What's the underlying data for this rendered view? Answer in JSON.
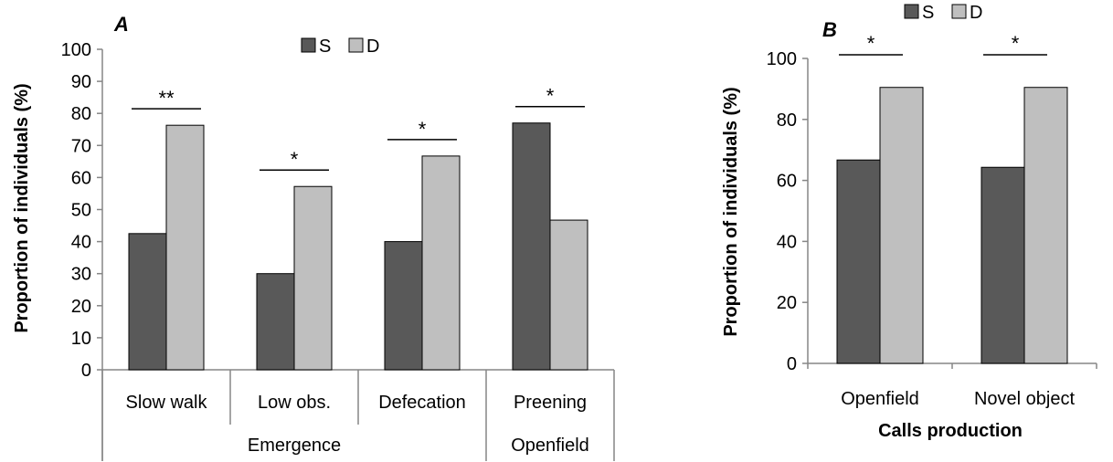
{
  "chart_data": [
    {
      "type": "bar",
      "panel_label": "A",
      "ylabel": "Proportion of individuals (%)",
      "ylim": [
        0,
        100
      ],
      "yticks": [
        0,
        10,
        20,
        30,
        40,
        50,
        60,
        70,
        80,
        90,
        100
      ],
      "categories": [
        "Slow walk",
        "Low obs.",
        "Defecation",
        "Preening"
      ],
      "groups": [
        {
          "label": "Emergence",
          "span": [
            0,
            2
          ]
        },
        {
          "label": "Openfield",
          "span": [
            3,
            3
          ]
        }
      ],
      "series": [
        {
          "name": "S",
          "color": "#595959",
          "values": [
            42.5,
            30,
            40,
            77
          ]
        },
        {
          "name": "D",
          "color": "#bfbfbf",
          "values": [
            76.3,
            57.2,
            66.7,
            46.7
          ]
        }
      ],
      "significance": [
        "**",
        "*",
        "*",
        "*"
      ],
      "legend": "top-center"
    },
    {
      "type": "bar",
      "panel_label": "B",
      "ylabel": "Proportion of individuals (%)",
      "xlabel": "Calls production",
      "ylim": [
        0,
        100
      ],
      "yticks": [
        0,
        20,
        40,
        60,
        80,
        100
      ],
      "categories": [
        "Openfield",
        "Novel object"
      ],
      "series": [
        {
          "name": "S",
          "color": "#595959",
          "values": [
            66.7,
            64.3
          ]
        },
        {
          "name": "D",
          "color": "#bfbfbf",
          "values": [
            90.5,
            90.5
          ]
        }
      ],
      "significance": [
        "*",
        "*"
      ],
      "legend": "top"
    }
  ]
}
